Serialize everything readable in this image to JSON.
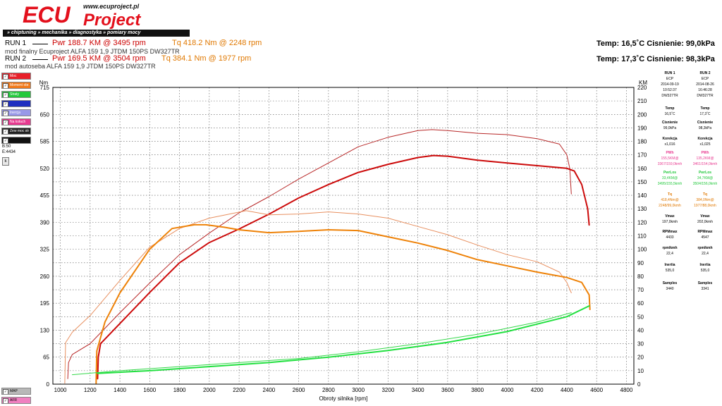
{
  "header": {
    "logo_main": "ECU",
    "logo_sub": "Project",
    "logo_url": "www.ecuproject.pl",
    "tagline": "» chiptuning » mechanika » diagnostyka » pomiary mocy",
    "runs": [
      {
        "label": "RUN 1",
        "pwr": "Pwr  188.7 KM @ 3495 rpm",
        "tq": "Tq 418.2 Nm @ 2248 rpm",
        "desc": "mod finalny Ecuproject ALFA 159 1,9 JTDM 150PS DW327TR",
        "env": "Temp: 16,5˚C   Cisnienie: 99,0kPa"
      },
      {
        "label": "RUN 2",
        "pwr": "Pwr  169.5 KM @ 3504 rpm",
        "tq": "Tq 384.1 Nm @ 1977 rpm",
        "desc": "mod autoseba ALFA 159 1,9 JTDM 150PS DW327TR",
        "env": "Temp: 17,3˚C   Cisnienie: 98,3kPa"
      }
    ]
  },
  "left_panel": {
    "checks": [
      {
        "label": "Moc",
        "color": "#e8202a"
      },
      {
        "label": "Moment obr.",
        "color": "#f07818"
      },
      {
        "label": "Straty",
        "color": "#22c83c"
      },
      {
        "label": "",
        "color": "#2030c0"
      },
      {
        "label": "Inercja",
        "color": "#9898e8"
      },
      {
        "label": "Na kołach",
        "color": "#e83a90"
      },
      {
        "label": "Zew moc str",
        "color": "#222222"
      },
      {
        "label": "",
        "color": "#111111"
      }
    ],
    "b_value": "B:50",
    "e_value": "E:4434",
    "k_button": "k",
    "bottom_checks": [
      {
        "label": "MAP",
        "color": "#b8b8b8"
      },
      {
        "label": "AFR",
        "color": "#f080c0"
      }
    ]
  },
  "right_panel": {
    "columns": [
      {
        "run": "RUN 1",
        "ecp": "ECP",
        "date": "2014-09-19",
        "time": "10:52:37",
        "code": "DW327TR",
        "temp_label": "Temp",
        "temp": "16,5˚C",
        "press_label": "Cisnienie",
        "press": "99,0kPa",
        "korekcja_label": "Korekcja",
        "korekcja": "x1,016",
        "pwh_label": "PWh",
        "pwh": "155,5KM@",
        "pwh_sub": "3367/159,0kmh",
        "pwlos_label": "PwrLos",
        "pwlos": "33,4KM@",
        "pwlos_sub": "3495/155,5kmh",
        "tq_label": "Tq",
        "tq": "418,4Nm@",
        "tq_sub": "2248/99,0kmh",
        "vmax_label": "Vmax",
        "vmax": "197,0kmh",
        "rpmmax_label": "RPMmax",
        "rpmmax": "4433",
        "rpmkmh_label": "rpm/kmh",
        "rpmkmh": "22,4",
        "inertia_label": "Inertia",
        "inertia": "535,0",
        "samples_label": "Samples",
        "samples": "3440"
      },
      {
        "run": "RUN 2",
        "ecp": "ECP",
        "date": "2014-08-26",
        "time": "16:46:28",
        "code": "DW327TR",
        "temp_label": "Temp",
        "temp": "17,3˚C",
        "press_label": "Cisnienie",
        "press": "98,3kPa",
        "korekcja_label": "Korekcja",
        "korekcja": "x1,025",
        "pwh_label": "PWh",
        "pwh": "135,2KM@",
        "pwh_sub": "3461/154,0kmh",
        "pwlos_label": "PwrLos",
        "pwlos": "34,7KM@",
        "pwlos_sub": "3504/156,0kmh",
        "tq_label": "Tq",
        "tq": "384,0Nm@",
        "tq_sub": "1977/88,0kmh",
        "vmax_label": "Vmax",
        "vmax": "202,0kmh",
        "rpmmax_label": "RPMmax",
        "rpmmax": "4547",
        "rpmkmh_label": "rpm/kmh",
        "rpmkmh": "22,4",
        "inertia_label": "Inertia",
        "inertia": "535,0",
        "samples_label": "Samples",
        "samples": "3341"
      }
    ]
  },
  "chart_data": {
    "type": "line",
    "xlabel": "Obroty silnika [rpm]",
    "ylabel_left": "Nm",
    "ylabel_right": "KM",
    "xlim": [
      950,
      4850
    ],
    "ylim_left": [
      0,
      715
    ],
    "ylim_right": [
      0,
      220
    ],
    "x_ticks": [
      1000,
      1200,
      1400,
      1600,
      1800,
      2000,
      2200,
      2400,
      2600,
      2800,
      3000,
      3200,
      3400,
      3600,
      3800,
      4000,
      4200,
      4400,
      4600,
      4800
    ],
    "y_ticks_left": [
      0,
      65,
      130,
      195,
      260,
      325,
      390,
      455,
      520,
      585,
      650,
      715
    ],
    "y_ticks_right": [
      0,
      10,
      20,
      30,
      40,
      50,
      60,
      70,
      80,
      90,
      100,
      110,
      120,
      130,
      140,
      150,
      160,
      170,
      180,
      190,
      200,
      210,
      220
    ],
    "grid": true,
    "series": [
      {
        "run": "RUN 1",
        "kind": "power",
        "axis": "right",
        "color": "#b82828",
        "width": 1,
        "points": [
          [
            1050,
            4
          ],
          [
            1055,
            16
          ],
          [
            1080,
            22
          ],
          [
            1200,
            30
          ],
          [
            1400,
            53
          ],
          [
            1600,
            75
          ],
          [
            1800,
            96
          ],
          [
            2000,
            112
          ],
          [
            2200,
            127
          ],
          [
            2400,
            139
          ],
          [
            2600,
            152
          ],
          [
            2800,
            164
          ],
          [
            3000,
            176
          ],
          [
            3200,
            183
          ],
          [
            3400,
            188
          ],
          [
            3495,
            188.7
          ],
          [
            3600,
            188
          ],
          [
            3800,
            186
          ],
          [
            4000,
            185
          ],
          [
            4200,
            182
          ],
          [
            4350,
            178
          ],
          [
            4400,
            170
          ],
          [
            4420,
            160
          ],
          [
            4430,
            141
          ]
        ]
      },
      {
        "run": "RUN 2",
        "kind": "power",
        "axis": "right",
        "color": "#cc0a0a",
        "width": 2,
        "points": [
          [
            1250,
            4
          ],
          [
            1255,
            20
          ],
          [
            1270,
            30
          ],
          [
            1400,
            45
          ],
          [
            1600,
            68
          ],
          [
            1800,
            90
          ],
          [
            2000,
            105
          ],
          [
            2200,
            115
          ],
          [
            2400,
            126
          ],
          [
            2600,
            138
          ],
          [
            2800,
            148
          ],
          [
            3000,
            157
          ],
          [
            3200,
            163
          ],
          [
            3400,
            168
          ],
          [
            3504,
            169.5
          ],
          [
            3600,
            169
          ],
          [
            3800,
            166
          ],
          [
            4000,
            164
          ],
          [
            4200,
            162
          ],
          [
            4400,
            160
          ],
          [
            4450,
            158
          ],
          [
            4500,
            148
          ],
          [
            4540,
            130
          ],
          [
            4550,
            118
          ]
        ]
      },
      {
        "run": "RUN 1",
        "kind": "torque",
        "axis": "left",
        "color": "#e89060",
        "width": 1,
        "points": [
          [
            1030,
            2
          ],
          [
            1035,
            100
          ],
          [
            1080,
            125
          ],
          [
            1200,
            165
          ],
          [
            1400,
            250
          ],
          [
            1600,
            330
          ],
          [
            1800,
            375
          ],
          [
            2000,
            400
          ],
          [
            2248,
            418
          ],
          [
            2400,
            408
          ],
          [
            2600,
            410
          ],
          [
            2800,
            415
          ],
          [
            3000,
            410
          ],
          [
            3200,
            400
          ],
          [
            3400,
            380
          ],
          [
            3600,
            360
          ],
          [
            3800,
            335
          ],
          [
            4000,
            312
          ],
          [
            4200,
            295
          ],
          [
            4350,
            270
          ],
          [
            4400,
            245
          ],
          [
            4430,
            220
          ]
        ]
      },
      {
        "run": "RUN 2",
        "kind": "torque",
        "axis": "left",
        "color": "#ee8208",
        "width": 2,
        "points": [
          [
            1240,
            2
          ],
          [
            1245,
            80
          ],
          [
            1300,
            150
          ],
          [
            1400,
            220
          ],
          [
            1600,
            325
          ],
          [
            1750,
            375
          ],
          [
            1900,
            384
          ],
          [
            1977,
            384
          ],
          [
            2100,
            378
          ],
          [
            2200,
            372
          ],
          [
            2400,
            365
          ],
          [
            2600,
            368
          ],
          [
            2800,
            372
          ],
          [
            3000,
            370
          ],
          [
            3200,
            355
          ],
          [
            3400,
            340
          ],
          [
            3600,
            322
          ],
          [
            3800,
            300
          ],
          [
            4000,
            285
          ],
          [
            4200,
            270
          ],
          [
            4400,
            257
          ],
          [
            4500,
            245
          ],
          [
            4550,
            215
          ],
          [
            4555,
            180
          ]
        ]
      },
      {
        "run": "RUN 1",
        "kind": "losses",
        "axis": "right",
        "color": "#34d84a",
        "width": 1,
        "points": [
          [
            1080,
            7
          ],
          [
            1400,
            10
          ],
          [
            1800,
            13
          ],
          [
            2200,
            16
          ],
          [
            2600,
            19
          ],
          [
            3000,
            24
          ],
          [
            3400,
            30
          ],
          [
            3800,
            37
          ],
          [
            4200,
            46
          ],
          [
            4430,
            53
          ]
        ]
      },
      {
        "run": "RUN 2",
        "kind": "losses",
        "axis": "right",
        "color": "#22e040",
        "width": 2,
        "points": [
          [
            1250,
            8
          ],
          [
            1600,
            10
          ],
          [
            2000,
            13
          ],
          [
            2400,
            16
          ],
          [
            2800,
            20
          ],
          [
            3200,
            25
          ],
          [
            3600,
            31
          ],
          [
            4000,
            39
          ],
          [
            4400,
            50
          ],
          [
            4550,
            58
          ]
        ]
      }
    ]
  }
}
